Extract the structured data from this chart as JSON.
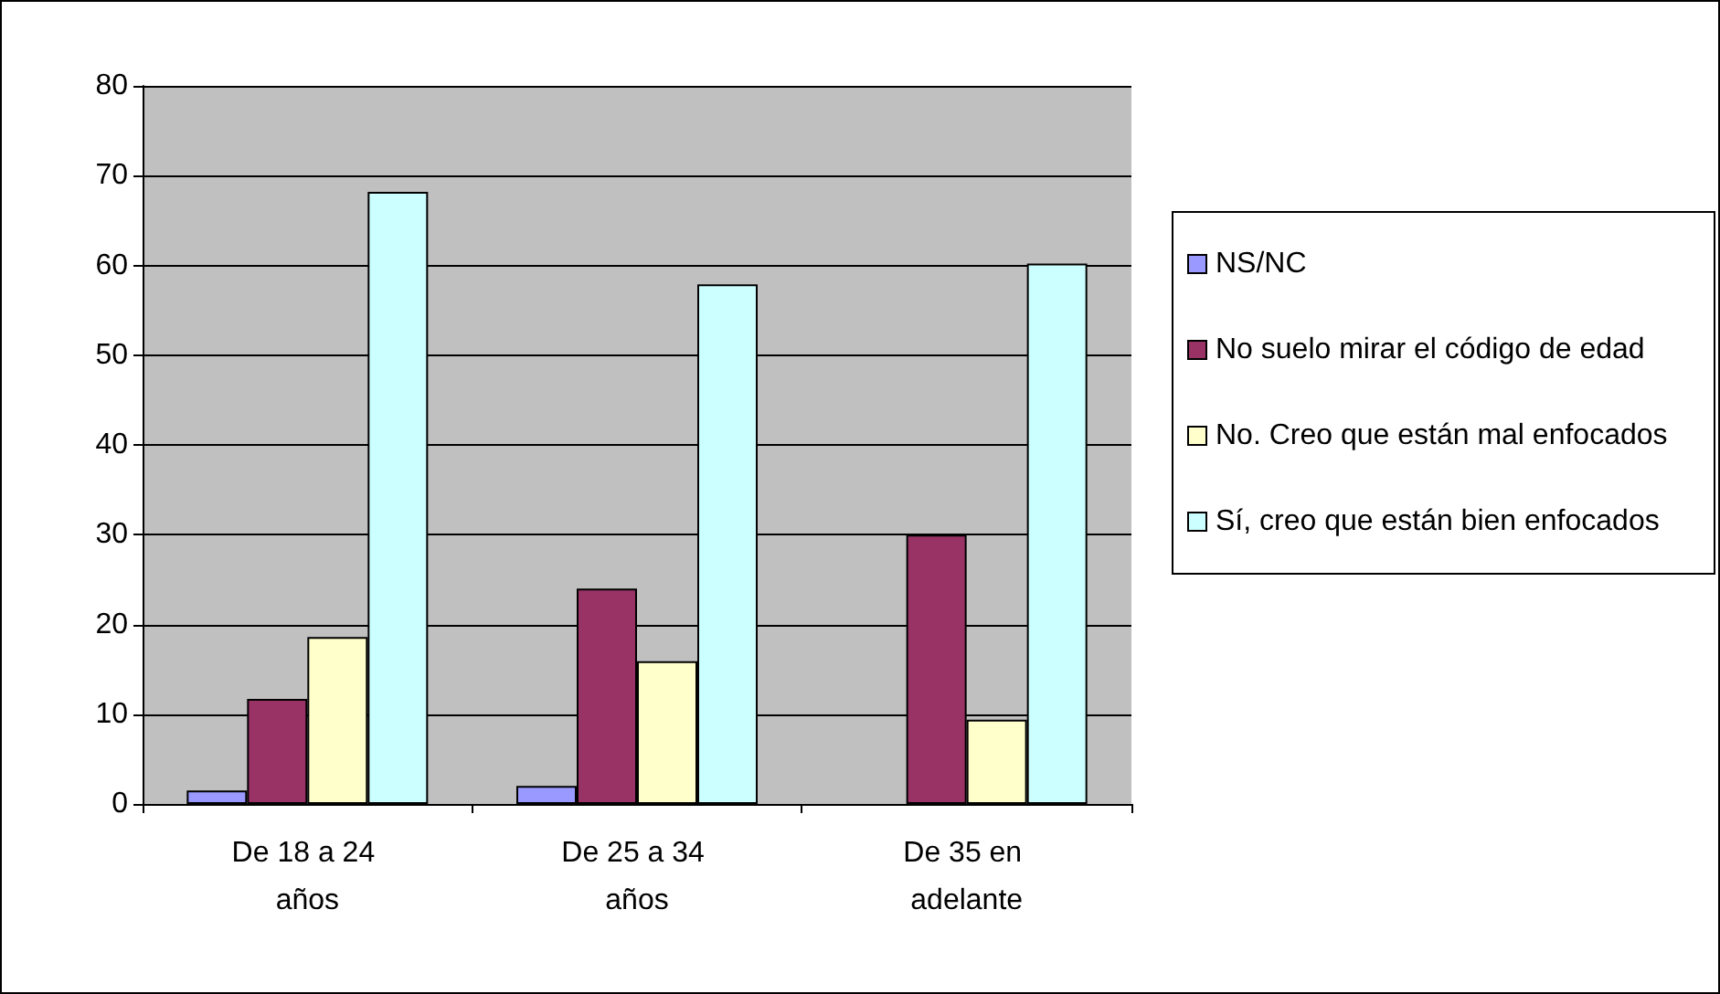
{
  "chart_data": {
    "type": "bar",
    "categories": [
      "De 18 a 24 años",
      "De 25 a 34 años",
      "De 35 en adelante"
    ],
    "series": [
      {
        "name": "NS/NC",
        "color": "#9999ff",
        "values": [
          1.5,
          2,
          null
        ]
      },
      {
        "name": "No suelo mirar el código de edad",
        "color": "#993366",
        "values": [
          11.7,
          24,
          30
        ]
      },
      {
        "name": "No. Creo que están mal enfocados",
        "color": "#ffffcc",
        "values": [
          18.6,
          15.9,
          9.4
        ]
      },
      {
        "name": "Sí, creo que están bien enfocados",
        "color": "#ccffff",
        "values": [
          68.2,
          57.9,
          60.2
        ]
      }
    ],
    "ylim": [
      0,
      80
    ],
    "yticks": [
      0,
      10,
      20,
      30,
      40,
      50,
      60,
      70,
      80
    ],
    "grid": "y",
    "legend": "right"
  }
}
